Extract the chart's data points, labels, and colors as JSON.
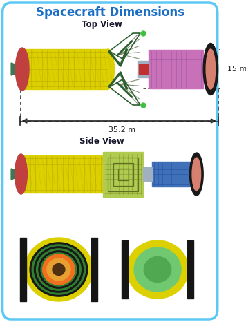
{
  "title": "Spacecraft Dimensions",
  "title_color": "#1a6fc4",
  "top_view_label": "Top View",
  "side_view_label": "Side View",
  "dim_35": "35.2 m",
  "dim_15": "15 m",
  "bg_color": "#ffffff",
  "border_color": "#5bc8f5",
  "yellow": "#ddd000",
  "pink_red": "#c04040",
  "dark_green": "#2d6030",
  "green_teal": "#3a7858",
  "magenta": "#c870b8",
  "blue_panel": "#4070b8",
  "gray_panel": "#a0b0c0",
  "light_green_panel": "#b0cc50",
  "orange": "#f07020",
  "light_orange": "#e8a030",
  "dark_brown": "#503010",
  "green_ring": "#308030",
  "salmon": "#d88070",
  "dashed_color": "#505050",
  "arrow_color": "#202020",
  "grid_yellow": "#b8a800",
  "grid_magenta": "#9050a0",
  "grid_blue": "#2050a0",
  "grid_green": "#809030"
}
